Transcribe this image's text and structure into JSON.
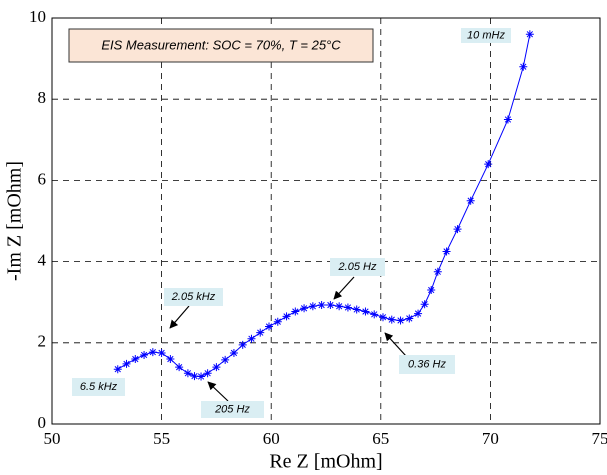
{
  "chart_data": {
    "type": "line",
    "title": "EIS Measurement: SOC = 70%, T = 25°C",
    "xlabel": "Re Z [mOhm]",
    "ylabel": "-Im Z [mOhm]",
    "xlim": [
      50,
      75
    ],
    "xticks": [
      50,
      55,
      60,
      65,
      70,
      75
    ],
    "ylim": [
      0,
      10
    ],
    "yticks": [
      0,
      2,
      4,
      6,
      8,
      10
    ],
    "grid": true,
    "x": [
      53.0,
      53.4,
      53.8,
      54.2,
      54.6,
      55.0,
      55.4,
      55.8,
      56.2,
      56.5,
      56.8,
      57.1,
      57.5,
      57.9,
      58.3,
      58.7,
      59.1,
      59.5,
      59.9,
      60.3,
      60.7,
      61.1,
      61.5,
      61.9,
      62.3,
      62.7,
      63.1,
      63.5,
      63.9,
      64.3,
      64.7,
      65.1,
      65.5,
      65.9,
      66.3,
      66.7,
      67.0,
      67.3,
      67.6,
      68.0,
      68.5,
      69.1,
      69.9,
      70.8,
      71.5,
      71.8
    ],
    "series": [
      {
        "color": "#0000ff",
        "values": [
          1.35,
          1.48,
          1.6,
          1.7,
          1.77,
          1.75,
          1.6,
          1.4,
          1.25,
          1.18,
          1.17,
          1.25,
          1.4,
          1.58,
          1.75,
          1.95,
          2.1,
          2.25,
          2.4,
          2.52,
          2.65,
          2.77,
          2.85,
          2.9,
          2.93,
          2.93,
          2.9,
          2.87,
          2.82,
          2.77,
          2.7,
          2.63,
          2.57,
          2.55,
          2.6,
          2.72,
          2.95,
          3.3,
          3.75,
          4.25,
          4.8,
          5.5,
          6.4,
          7.5,
          8.8,
          9.6
        ]
      }
    ],
    "annotations": [
      "10 mHz",
      "2.05 kHz",
      "2.05 Hz",
      "6.5 kHz",
      "205 Hz",
      "0.36 Hz"
    ]
  }
}
